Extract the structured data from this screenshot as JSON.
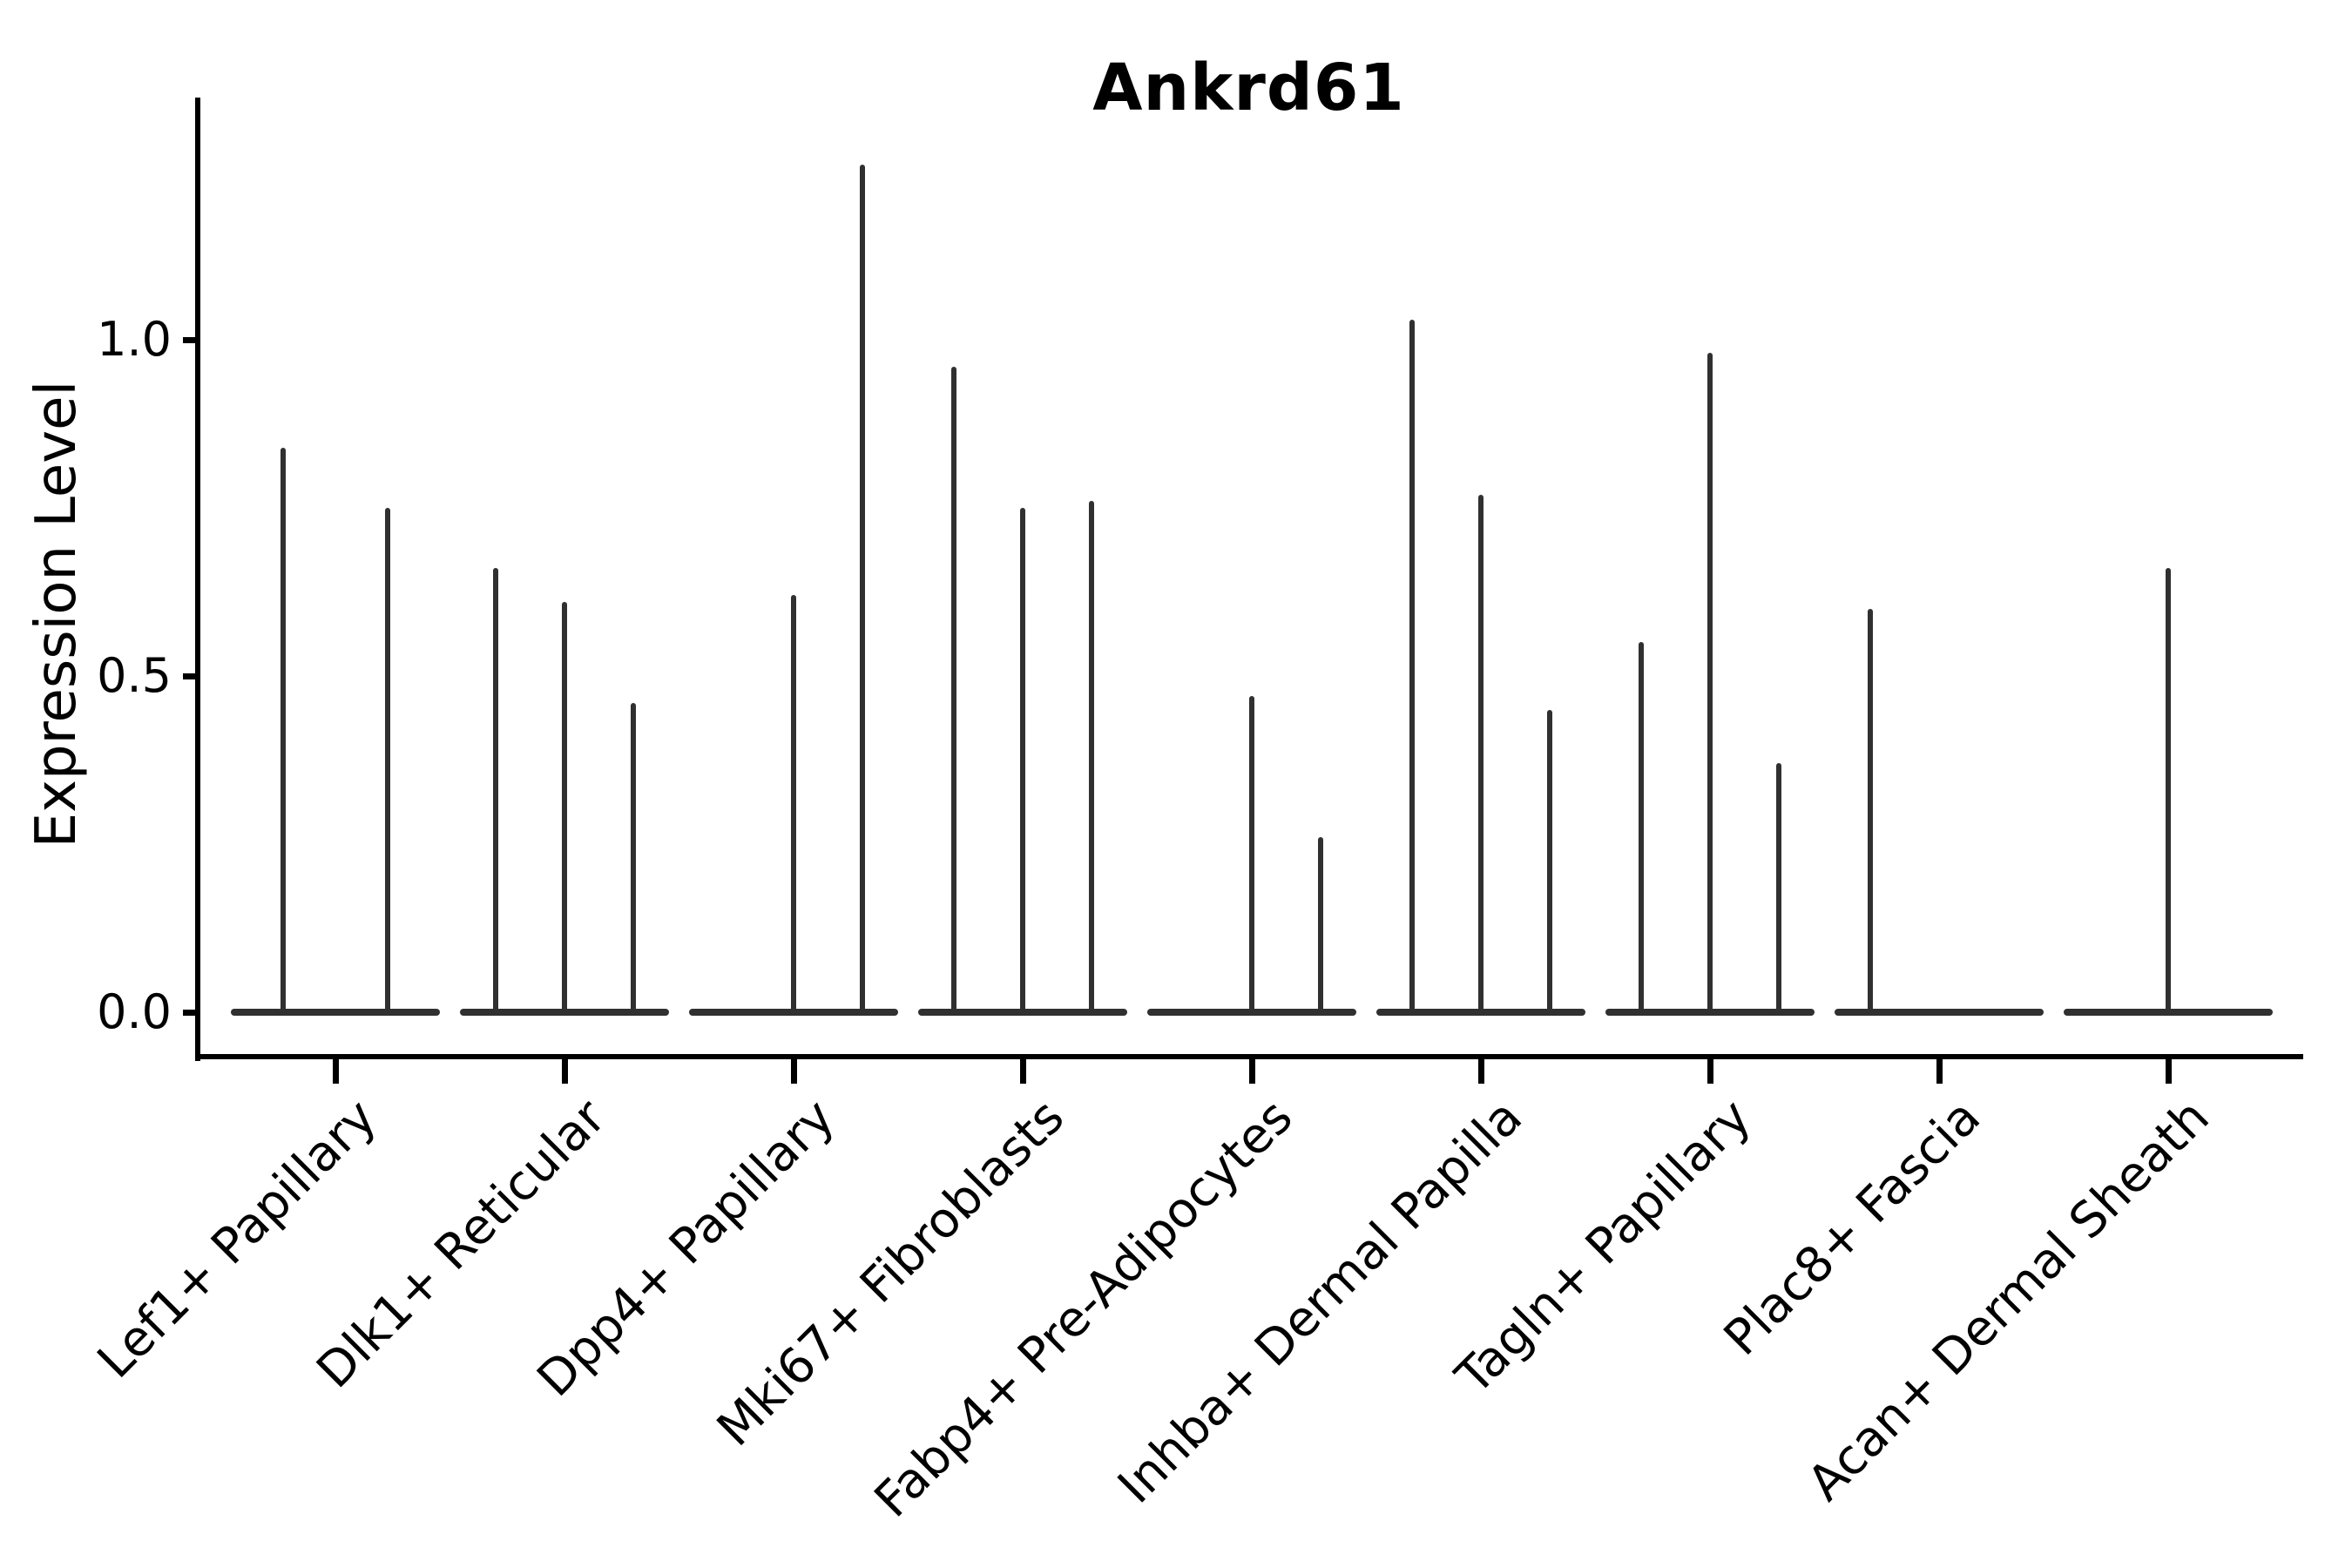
{
  "chart_data": {
    "type": "violin",
    "title": "Ankrd61",
    "ylabel": "Expression Level",
    "xlabel": "",
    "ylim": [
      -0.06,
      1.36
    ],
    "yticks": [
      0.0,
      0.5,
      1.0
    ],
    "ytick_labels": [
      "0.0",
      "0.5",
      "1.0"
    ],
    "grid": false,
    "legend": "none",
    "x_tick_rotation_deg": 45,
    "categories": [
      "Lef1+ Papillary",
      "Dlk1+ Reticular",
      "Dpp4+ Papillary",
      "Mki67+ Fibroblasts",
      "Fabp4+ Pre-Adipocytes",
      "Inhba+ Dermal Papilla",
      "Tagln+ Papillary",
      "Plac8+ Fascia",
      "Acan+ Dermal Sheath"
    ],
    "groups": [
      {
        "category": "Lef1+ Papillary",
        "violins": [
          {
            "offset": -60,
            "max_expression": 0.84
          },
          {
            "offset": 60,
            "max_expression": 0.75
          }
        ]
      },
      {
        "category": "Dlk1+ Reticular",
        "violins": [
          {
            "offset": -79,
            "max_expression": 0.66
          },
          {
            "offset": 0,
            "max_expression": 0.61
          },
          {
            "offset": 79,
            "max_expression": 0.46
          }
        ]
      },
      {
        "category": "Dpp4+ Papillary",
        "violins": [
          {
            "offset": 0,
            "max_expression": 0.62
          },
          {
            "offset": 79,
            "max_expression": 1.26
          }
        ]
      },
      {
        "category": "Mki67+ Fibroblasts",
        "violins": [
          {
            "offset": -79,
            "max_expression": 0.96
          },
          {
            "offset": 0,
            "max_expression": 0.75
          },
          {
            "offset": 79,
            "max_expression": 0.76
          }
        ]
      },
      {
        "category": "Fabp4+ Pre-Adipocytes",
        "violins": [
          {
            "offset": 0,
            "max_expression": 0.47
          },
          {
            "offset": 79,
            "max_expression": 0.26
          }
        ]
      },
      {
        "category": "Inhba+ Dermal Papilla",
        "violins": [
          {
            "offset": -79,
            "max_expression": 1.03
          },
          {
            "offset": 0,
            "max_expression": 0.77
          },
          {
            "offset": 79,
            "max_expression": 0.45
          }
        ]
      },
      {
        "category": "Tagln+ Papillary",
        "violins": [
          {
            "offset": -79,
            "max_expression": 0.55
          },
          {
            "offset": 0,
            "max_expression": 0.98
          },
          {
            "offset": 79,
            "max_expression": 0.37
          }
        ]
      },
      {
        "category": "Plac8+ Fascia",
        "violins": [
          {
            "offset": -79,
            "max_expression": 0.6
          }
        ]
      },
      {
        "category": "Acan+ Dermal Sheath",
        "violins": [
          {
            "offset": 0,
            "max_expression": 0.66
          }
        ]
      }
    ]
  },
  "colors": {
    "violin": "#303030",
    "axis": "#000000",
    "text": "#000000",
    "background": "#ffffff"
  }
}
